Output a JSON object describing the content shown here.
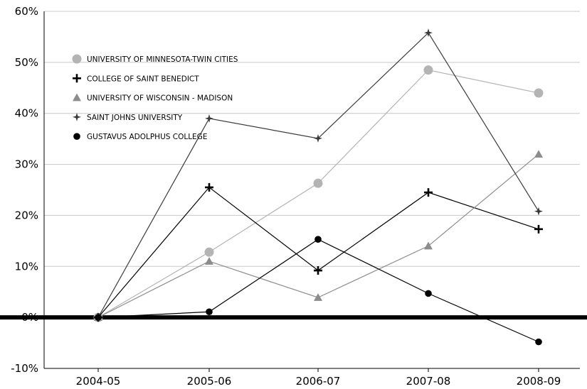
{
  "chart_data": {
    "type": "line",
    "title": "",
    "xlabel": "",
    "ylabel": "",
    "categories": [
      "2004-05",
      "2005-06",
      "2006-07",
      "2007-08",
      "2008-09"
    ],
    "y_ticks": [
      "-10%",
      "0%",
      "10%",
      "20%",
      "30%",
      "40%",
      "50%",
      "60%"
    ],
    "ylim": [
      -10,
      60
    ],
    "grid": "horizontal",
    "legend": "top-left",
    "series": [
      {
        "name": "UNIVERSITY OF MINNESOTA-TWIN CITIES",
        "values": [
          0,
          12.8,
          26.3,
          48.5,
          44
        ],
        "color": "#b4b4b4",
        "marker": "circle"
      },
      {
        "name": "COLLEGE OF SAINT BENEDICT",
        "values": [
          0,
          25.5,
          9.2,
          24.5,
          17.3
        ],
        "color": "#000000",
        "marker": "plus"
      },
      {
        "name": "UNIVERSITY OF WISCONSIN - MADISON",
        "values": [
          0,
          11,
          3.9,
          14,
          32
        ],
        "color": "#8c8c8c",
        "marker": "triangle"
      },
      {
        "name": "SAINT JOHNS UNIVERSITY",
        "values": [
          0,
          39,
          35.1,
          55.8,
          20.8
        ],
        "color": "#3a3a3a",
        "marker": "star"
      },
      {
        "name": "GUSTAVUS ADOLPHUS COLLEGE",
        "values": [
          0,
          1.1,
          15.3,
          4.7,
          -4.8
        ],
        "color": "#000000",
        "marker": "dot"
      }
    ]
  }
}
